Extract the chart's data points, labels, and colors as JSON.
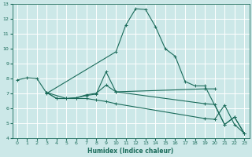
{
  "bg_color": "#cce8e8",
  "grid_color": "#b8d8d8",
  "line_color": "#1a6b5a",
  "xlabel": "Humidex (Indice chaleur)",
  "xlim": [
    -0.5,
    23.5
  ],
  "ylim": [
    4,
    13
  ],
  "yticks": [
    4,
    5,
    6,
    7,
    8,
    9,
    10,
    11,
    12,
    13
  ],
  "xticks": [
    0,
    1,
    2,
    3,
    4,
    5,
    6,
    7,
    8,
    9,
    10,
    11,
    12,
    13,
    14,
    15,
    16,
    17,
    18,
    19,
    20,
    21,
    22,
    23
  ],
  "curve1_x": [
    0,
    1,
    2,
    3,
    10,
    11,
    12,
    13,
    14,
    15,
    16,
    17,
    18,
    19,
    21,
    22,
    23
  ],
  "curve1_y": [
    7.9,
    8.05,
    8.0,
    7.0,
    9.8,
    11.6,
    12.7,
    12.65,
    11.5,
    10.0,
    9.5,
    7.8,
    7.5,
    7.5,
    4.9,
    5.4,
    4.3
  ],
  "curve2_x": [
    3,
    4,
    5,
    6,
    7,
    8,
    9,
    10,
    19,
    20
  ],
  "curve2_y": [
    7.05,
    6.65,
    6.65,
    6.7,
    6.9,
    7.0,
    7.55,
    7.1,
    7.3,
    7.3
  ],
  "curve3_x": [
    3,
    5,
    6,
    7,
    8,
    9,
    10,
    19,
    20,
    21,
    22,
    23
  ],
  "curve3_y": [
    7.05,
    6.65,
    6.65,
    6.65,
    6.55,
    6.45,
    6.3,
    5.3,
    5.25,
    6.2,
    4.9,
    4.3
  ],
  "curve4_x": [
    3,
    4,
    5,
    6,
    7,
    8,
    9,
    10,
    19,
    20,
    21,
    22,
    23
  ],
  "curve4_y": [
    7.05,
    6.65,
    6.65,
    6.7,
    6.85,
    6.95,
    8.45,
    7.1,
    6.3,
    6.25,
    4.9,
    5.4,
    4.3
  ]
}
